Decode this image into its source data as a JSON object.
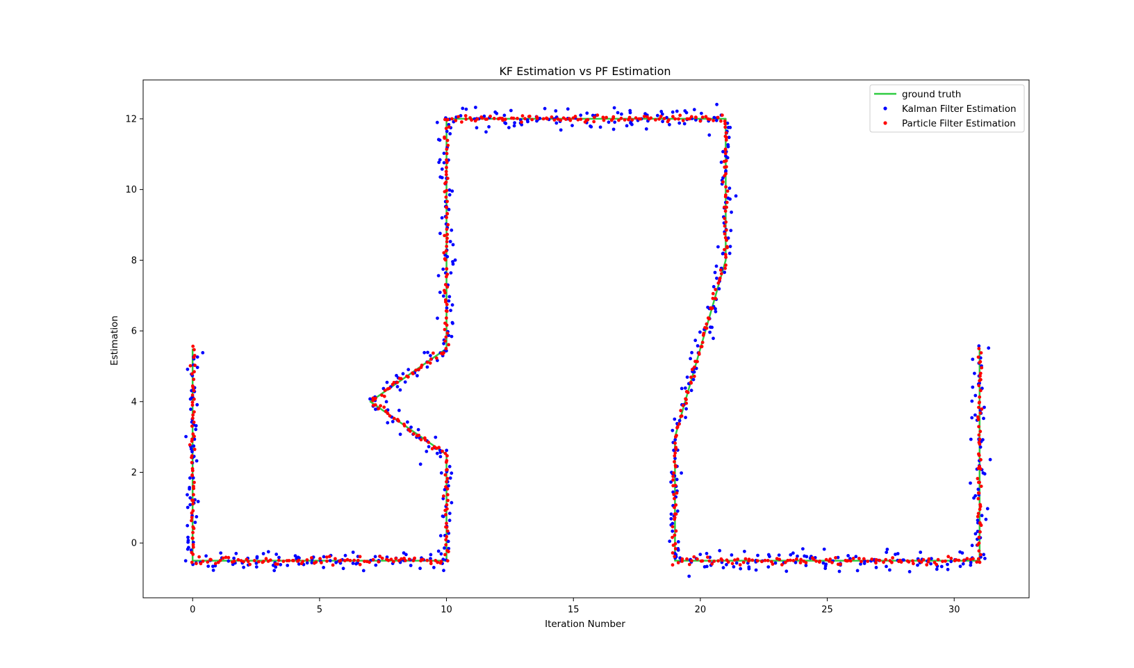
{
  "chart_data": {
    "type": "scatter",
    "title": "KF Estimation vs PF Estimation",
    "xlabel": "Iteration Number",
    "ylabel": "Estimation",
    "xlim": [
      -1.95,
      32.95
    ],
    "ylim": [
      -1.55,
      13.1
    ],
    "xticks": [
      0,
      5,
      10,
      15,
      20,
      25,
      30
    ],
    "yticks": [
      0,
      2,
      4,
      6,
      8,
      10,
      12
    ],
    "grid": false,
    "legend_position": "top-right",
    "series": [
      {
        "name": "ground truth",
        "kind": "line",
        "color": "#2ecc40",
        "points": [
          [
            0,
            5.5
          ],
          [
            0,
            -0.5
          ],
          [
            10,
            -0.5
          ],
          [
            10,
            2.5
          ],
          [
            7,
            4
          ],
          [
            10,
            5.5
          ],
          [
            10,
            12
          ],
          [
            21,
            12
          ],
          [
            21,
            8
          ],
          [
            19,
            3
          ],
          [
            19,
            -0.5
          ],
          [
            31,
            -0.5
          ],
          [
            31,
            5.5
          ]
        ]
      },
      {
        "name": "Kalman Filter Estimation",
        "kind": "markers",
        "color": "#0000ff",
        "noise_std": 0.16
      },
      {
        "name": "Particle Filter Estimation",
        "kind": "markers",
        "color": "#ff0000",
        "noise_std": 0.05
      }
    ]
  }
}
